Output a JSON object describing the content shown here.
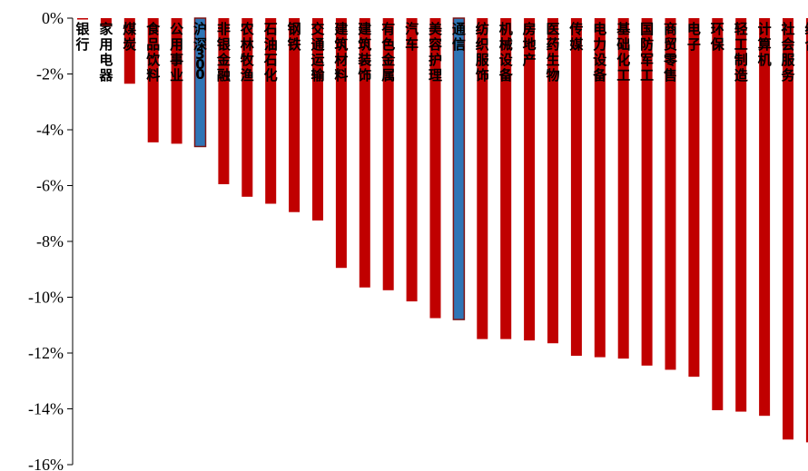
{
  "chart_data": {
    "type": "bar",
    "title": "",
    "xlabel": "",
    "ylabel": "",
    "ylim": [
      -16,
      0
    ],
    "y_ticks": [
      0,
      -2,
      -4,
      -6,
      -8,
      -10,
      -12,
      -14,
      -16
    ],
    "y_tick_labels": [
      "0%",
      "-2%",
      "-4%",
      "-6%",
      "-8%",
      "-10%",
      "-12%",
      "-14%",
      "-16%"
    ],
    "grid": false,
    "legend": "none",
    "categories": [
      "银行",
      "家用电器",
      "煤炭",
      "食品饮料",
      "公用事业",
      "沪深300",
      "非银金融",
      "农林牧渔",
      "石油石化",
      "钢铁",
      "交通运输",
      "建筑材料",
      "建筑装饰",
      "有色金属",
      "汽车",
      "美容护理",
      "通信",
      "纺织服饰",
      "机械设备",
      "房地产",
      "医药生物",
      "传媒",
      "电力设备",
      "基础化工",
      "国防军工",
      "商贸零售",
      "电子",
      "环保",
      "轻工制造",
      "计算机",
      "社会服务",
      "综合"
    ],
    "values": [
      -0.05,
      -0.3,
      -2.35,
      -4.45,
      -4.5,
      -4.6,
      -5.95,
      -6.4,
      -6.65,
      -6.95,
      -7.25,
      -8.95,
      -9.65,
      -9.75,
      -10.15,
      -10.75,
      -10.8,
      -11.5,
      -11.5,
      -11.55,
      -11.65,
      -12.1,
      -12.15,
      -12.2,
      -12.45,
      -12.6,
      -12.85,
      -14.05,
      -14.1,
      -14.25,
      -15.1,
      -15.2
    ],
    "highlight_categories": [
      "沪深300",
      "通信"
    ],
    "colors": {
      "default": "#C00000",
      "highlight": "#2E75B6",
      "highlight_border": "#7B1414",
      "axis": "#000000"
    }
  }
}
